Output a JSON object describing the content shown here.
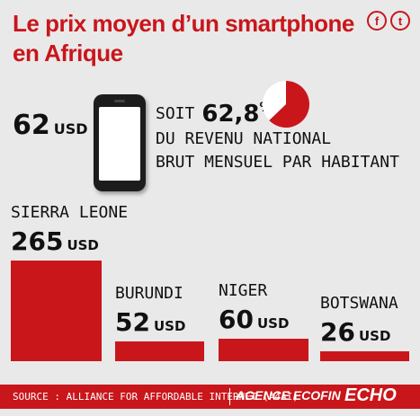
{
  "header": {
    "title": "Le prix moyen d’un smartphone en Afrique",
    "social": [
      "facebook-icon",
      "twitter-icon"
    ]
  },
  "average": {
    "value": "62",
    "unit": "USD"
  },
  "share": {
    "soit": "SOIT",
    "percent": "62,8",
    "percent_sign": "%",
    "line2": "DU REVENU NATIONAL",
    "line3": "BRUT MENSUEL PAR HABITANT",
    "fraction": 0.628
  },
  "chart_data": {
    "type": "bar",
    "categories": [
      "SIERRA LEONE",
      "BURUNDI",
      "NIGER",
      "BOTSWANA"
    ],
    "values": [
      265,
      52,
      60,
      26
    ],
    "unit": "USD",
    "colors": {
      "bar": "#c9161b"
    }
  },
  "footer": {
    "source": "SOURCE : ALLIANCE FOR AFFORDABLE INTERNET (A4AI)",
    "agency": "AGENCE ECOFIN",
    "echo": "ECHO"
  }
}
